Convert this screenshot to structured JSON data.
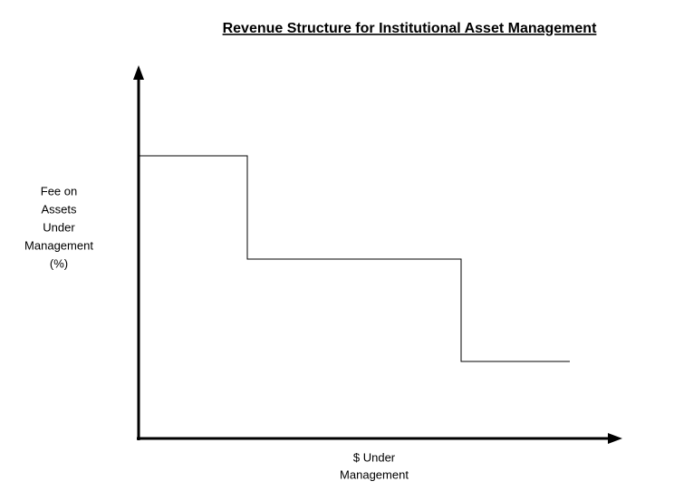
{
  "title": "Revenue Structure for Institutional Asset Management",
  "y_axis_label": [
    "Fee on",
    "Assets",
    "Under",
    "Management",
    "(%)"
  ],
  "x_axis_label": [
    "$ Under",
    "Management"
  ]
}
